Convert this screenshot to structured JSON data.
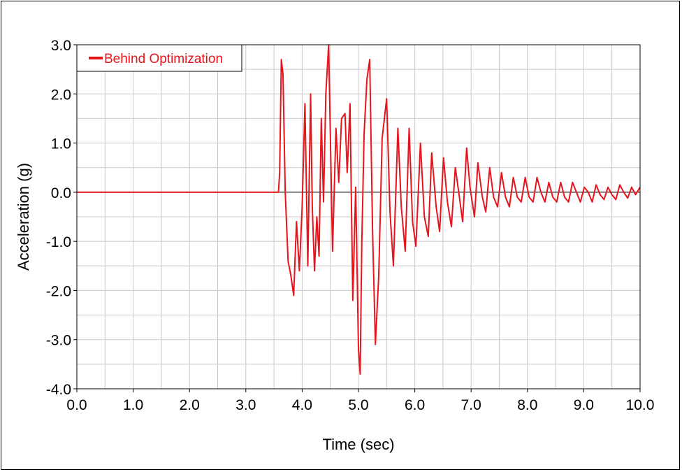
{
  "chart_data": {
    "type": "line",
    "title": "",
    "xlabel": "Time (sec)",
    "ylabel": "Acceleration (g)",
    "xlim": [
      0.0,
      10.0
    ],
    "ylim": [
      -4.0,
      3.0
    ],
    "xticks": [
      "0.0",
      "1.0",
      "2.0",
      "3.0",
      "4.0",
      "5.0",
      "6.0",
      "7.0",
      "8.0",
      "9.0",
      "10.0"
    ],
    "yticks": [
      "3.0",
      "2.0",
      "1.0",
      "0.0",
      "-1.0",
      "-2.0",
      "-3.0",
      "-4.0"
    ],
    "grid": true,
    "legend_position": "top-left",
    "series": [
      {
        "name": "Behind Optimization",
        "color": "#e8141b",
        "x": [
          0.0,
          3.58,
          3.6,
          3.63,
          3.66,
          3.7,
          3.75,
          3.8,
          3.85,
          3.9,
          3.95,
          4.0,
          4.05,
          4.1,
          4.15,
          4.18,
          4.22,
          4.26,
          4.3,
          4.34,
          4.38,
          4.42,
          4.47,
          4.5,
          4.54,
          4.6,
          4.65,
          4.7,
          4.76,
          4.8,
          4.85,
          4.9,
          4.95,
          5.0,
          5.03,
          5.06,
          5.1,
          5.15,
          5.2,
          5.25,
          5.3,
          5.36,
          5.42,
          5.5,
          5.56,
          5.62,
          5.7,
          5.76,
          5.83,
          5.9,
          5.96,
          6.02,
          6.1,
          6.17,
          6.24,
          6.3,
          6.38,
          6.44,
          6.51,
          6.58,
          6.65,
          6.72,
          6.78,
          6.85,
          6.92,
          6.98,
          7.06,
          7.12,
          7.2,
          7.26,
          7.33,
          7.4,
          7.47,
          7.54,
          7.61,
          7.68,
          7.75,
          7.82,
          7.89,
          7.96,
          8.03,
          8.1,
          8.17,
          8.24,
          8.31,
          8.38,
          8.45,
          8.52,
          8.59,
          8.66,
          8.73,
          8.8,
          8.87,
          8.94,
          9.01,
          9.08,
          9.15,
          9.22,
          9.29,
          9.36,
          9.43,
          9.5,
          9.57,
          9.64,
          9.71,
          9.78,
          9.85,
          9.92,
          10.0
        ],
        "y": [
          0.0,
          0.0,
          0.4,
          2.7,
          2.4,
          0.0,
          -1.4,
          -1.7,
          -2.1,
          -0.6,
          -1.6,
          -0.3,
          1.8,
          -1.5,
          2.0,
          -0.3,
          -1.6,
          -0.5,
          -1.3,
          1.5,
          -0.2,
          2.0,
          3.0,
          1.2,
          -1.2,
          1.3,
          0.2,
          1.5,
          1.6,
          0.4,
          1.8,
          -2.2,
          0.1,
          -3.2,
          -3.7,
          -1.0,
          1.2,
          2.3,
          2.7,
          -0.8,
          -3.1,
          -1.7,
          1.1,
          1.9,
          -0.4,
          -1.5,
          1.3,
          -0.3,
          -1.2,
          1.3,
          -0.6,
          -1.1,
          1.0,
          -0.5,
          -0.9,
          0.8,
          -0.3,
          -0.8,
          0.7,
          -0.2,
          -0.7,
          0.5,
          0.0,
          -0.6,
          0.9,
          0.1,
          -0.5,
          0.6,
          -0.1,
          -0.4,
          0.5,
          -0.1,
          -0.3,
          0.4,
          -0.1,
          -0.3,
          0.3,
          -0.1,
          -0.2,
          0.3,
          -0.1,
          -0.2,
          0.3,
          0.0,
          -0.2,
          0.2,
          -0.1,
          -0.2,
          0.2,
          -0.1,
          -0.2,
          0.2,
          0.0,
          -0.2,
          0.1,
          0.0,
          -0.2,
          0.15,
          -0.05,
          -0.15,
          0.1,
          -0.05,
          -0.15,
          0.15,
          0.0,
          -0.12,
          0.1,
          -0.05,
          0.1
        ]
      }
    ]
  }
}
